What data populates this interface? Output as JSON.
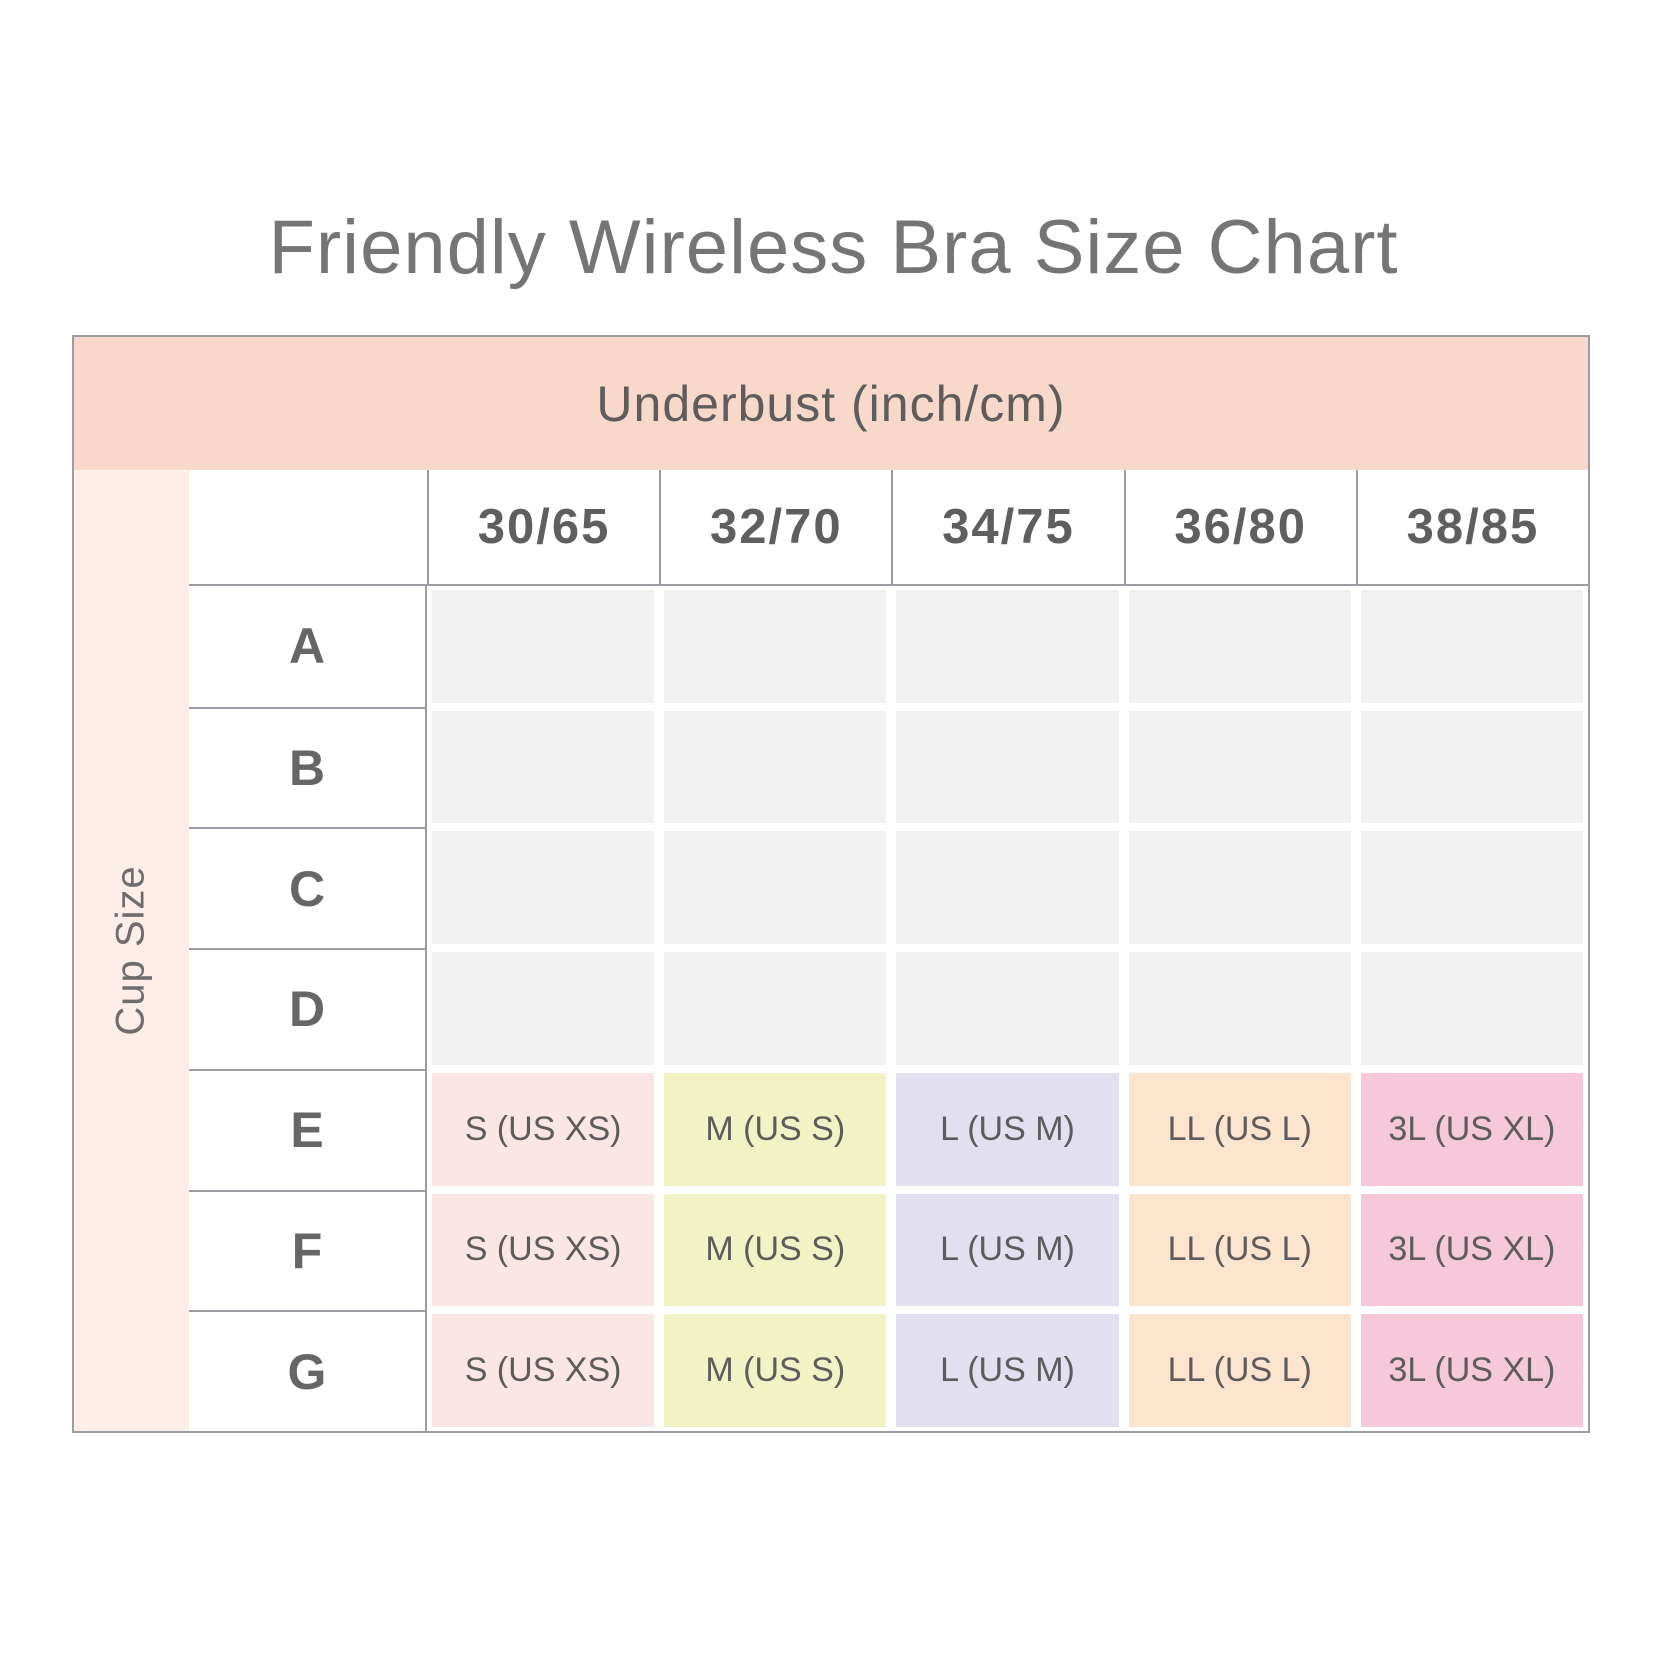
{
  "chart_data": {
    "type": "table",
    "title": "Friendly Wireless Bra Size Chart",
    "column_header_group": "Underbust (inch/cm)",
    "row_header_group": "Cup Size",
    "columns": [
      "30/65",
      "32/70",
      "34/75",
      "36/80",
      "38/85"
    ],
    "rows": [
      {
        "cup": "A",
        "values": [
          "",
          "",
          "",
          "",
          ""
        ]
      },
      {
        "cup": "B",
        "values": [
          "",
          "",
          "",
          "",
          ""
        ]
      },
      {
        "cup": "C",
        "values": [
          "",
          "",
          "",
          "",
          ""
        ]
      },
      {
        "cup": "D",
        "values": [
          "",
          "",
          "",
          "",
          ""
        ]
      },
      {
        "cup": "E",
        "values": [
          "S (US XS)",
          "M (US S)",
          "L (US M)",
          "LL (US L)",
          "3L (US XL)"
        ]
      },
      {
        "cup": "F",
        "values": [
          "S (US XS)",
          "M (US S)",
          "L (US M)",
          "LL (US L)",
          "3L (US XL)"
        ]
      },
      {
        "cup": "G",
        "values": [
          "S (US XS)",
          "M (US S)",
          "L (US M)",
          "LL (US L)",
          "3L (US XL)"
        ]
      }
    ],
    "colors": {
      "header_band": "#f9d8cc",
      "row_group_strip": "#fdeeea",
      "empty_cell": "#f1f1f1",
      "size_cells": [
        "#fbe6e6",
        "#f2f3c5",
        "#e2e0ef",
        "#fce4cf",
        "#f6c8d9"
      ],
      "grid_line": "#9c9ca4",
      "title_text": "#757575",
      "cell_text": "#5c5c5c"
    }
  }
}
